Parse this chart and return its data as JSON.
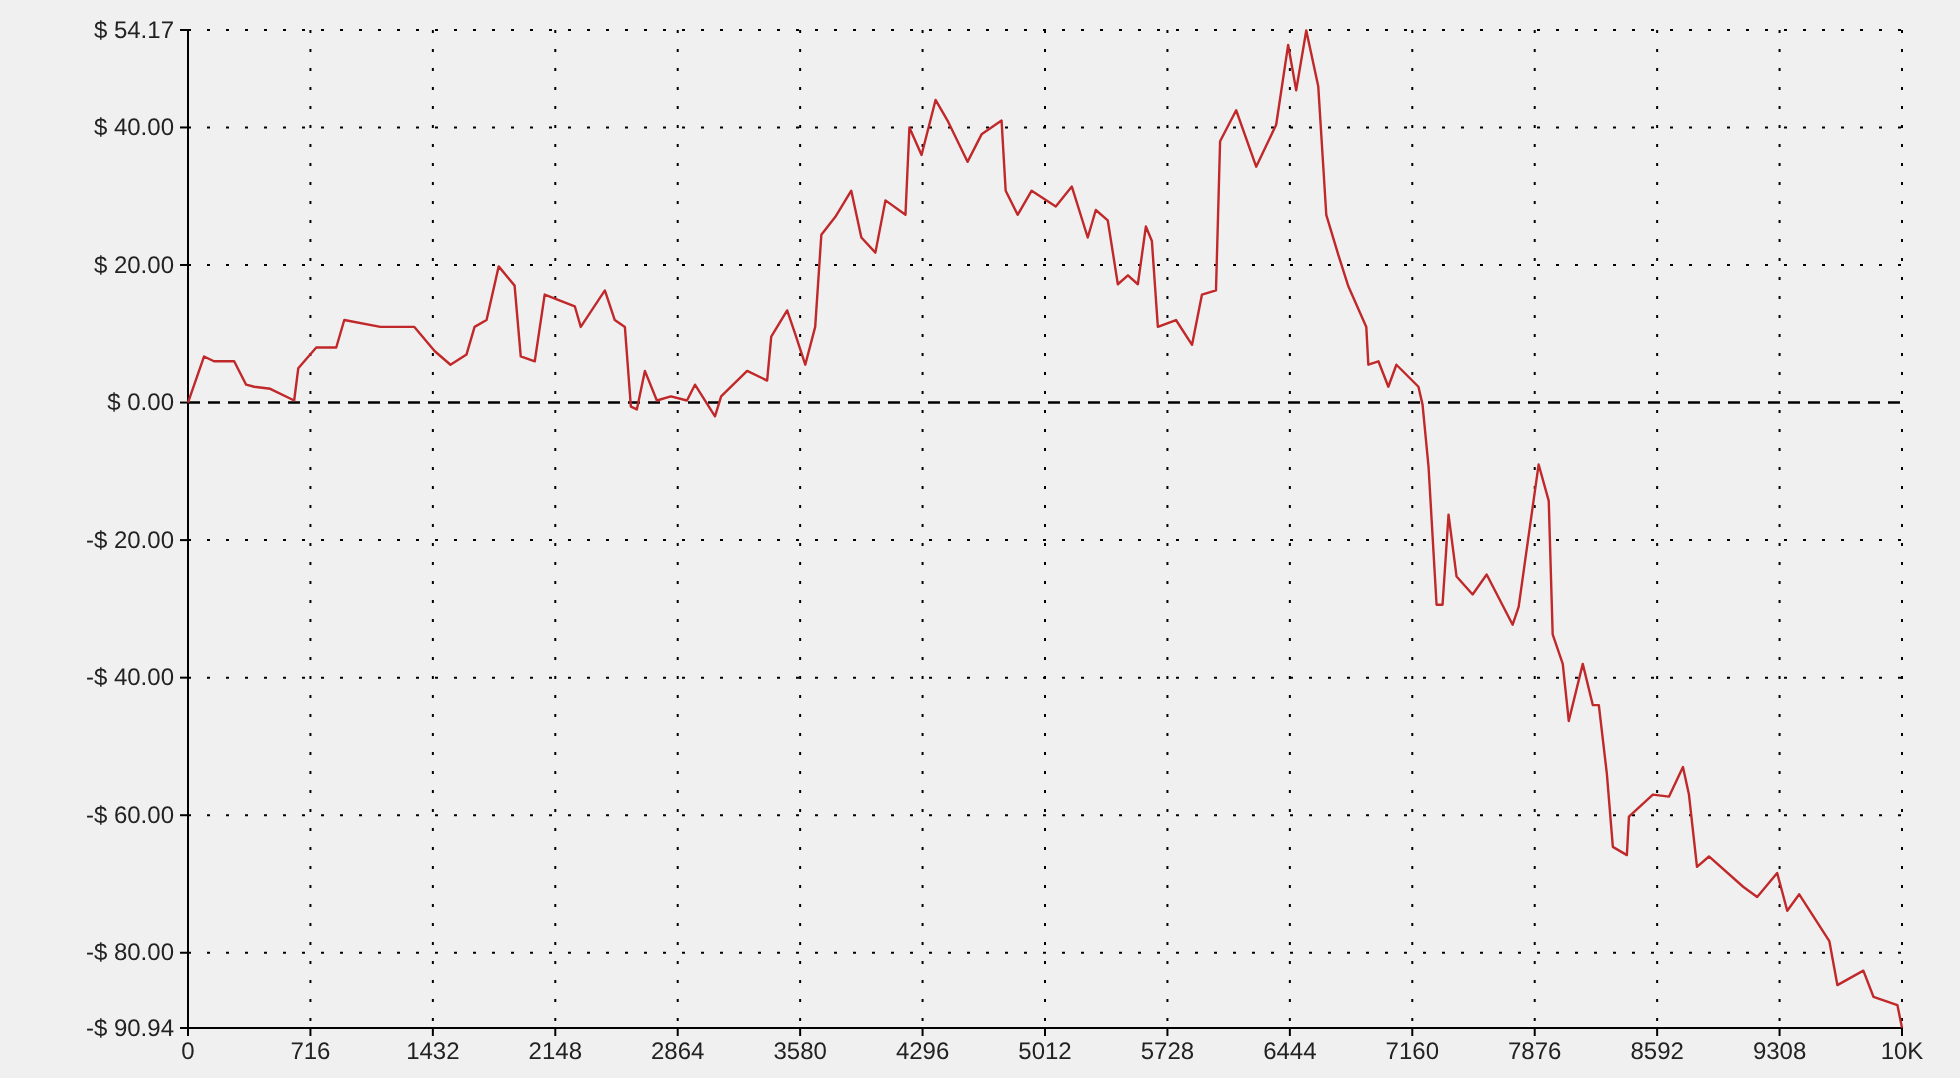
{
  "chart_data": {
    "type": "line",
    "x": [
      0,
      94,
      152,
      270,
      340,
      387,
      481,
      621,
      645,
      750,
      867,
      914,
      1125,
      1324,
      1442,
      1535,
      1629,
      1676,
      1746,
      1817,
      1910,
      1946,
      2028,
      2086,
      2262,
      2297,
      2438,
      2496,
      2555,
      2590,
      2625,
      2672,
      2742,
      2824,
      2918,
      2965,
      3082,
      3118,
      3270,
      3387,
      3411,
      3504,
      3551,
      3610,
      3668,
      3704,
      3786,
      3879,
      3938,
      4020,
      4079,
      4196,
      4219,
      4290,
      4372,
      4442,
      4559,
      4641,
      4758,
      4782,
      4852,
      4934,
      5075,
      5169,
      5262,
      5309,
      5379,
      5438,
      5497,
      5555,
      5602,
      5637,
      5672,
      5778,
      5872,
      5930,
      6012,
      6036,
      6130,
      6247,
      6364,
      6434,
      6481,
      6540,
      6610,
      6657,
      6727,
      6786,
      6891,
      6903,
      6962,
      7020,
      7067,
      7196,
      7220,
      7255,
      7302,
      7337,
      7372,
      7419,
      7513,
      7595,
      7747,
      7782,
      7899,
      7958,
      7981,
      8040,
      8075,
      8157,
      8216,
      8251,
      8298,
      8333,
      8415,
      8427,
      8567,
      8661,
      8743,
      8778,
      8825,
      8895,
      9095,
      9177,
      9294,
      9353,
      9423,
      9599,
      9646,
      9798,
      9857,
      9997,
      10024
    ],
    "series": [
      {
        "color": "#c0282a",
        "values": [
          0,
          6.7,
          6,
          6,
          2.6,
          2.3,
          2,
          0.3,
          5,
          8,
          8,
          12,
          11,
          11,
          7.5,
          5.5,
          7,
          11,
          12,
          19.8,
          17,
          6.7,
          6,
          15.7,
          14,
          11,
          16.3,
          12,
          11,
          -0.6,
          -1,
          4.6,
          0.3,
          0.9,
          0.3,
          2.6,
          -2,
          0.9,
          4.6,
          3.2,
          9.6,
          13.4,
          10,
          5.5,
          11,
          24.4,
          27,
          30.8,
          24,
          21.8,
          29.4,
          27.3,
          40,
          36,
          44,
          41,
          35,
          39,
          41,
          30.8,
          27.3,
          30.8,
          28.5,
          31.4,
          24,
          28,
          26.5,
          17.2,
          18.5,
          17.2,
          25.6,
          23.5,
          11,
          12,
          8.4,
          15.7,
          16.3,
          38,
          42.5,
          34.3,
          40.4,
          52,
          45.4,
          54.1,
          46,
          27.3,
          21.5,
          16.9,
          11,
          5.5,
          6,
          2.3,
          5.5,
          2.3,
          -0.3,
          -9.3,
          -29.4,
          -29.4,
          -16.3,
          -25.3,
          -27.9,
          -25,
          -32.3,
          -29.7,
          -9,
          -14.3,
          -33.7,
          -38,
          -46.3,
          -38,
          -44,
          -44,
          -54,
          -64.6,
          -65.8,
          -60.2,
          -57,
          -57.3,
          -53,
          -57,
          -67.5,
          -66,
          -70.4,
          -71.9,
          -68.4,
          -73.9,
          -71.5,
          -78.3,
          -84.7,
          -82.6,
          -86.4,
          -87.6,
          -90.9
        ]
      }
    ],
    "xlim": [
      0,
      10024
    ],
    "xticks": [
      0,
      716,
      1432,
      2148,
      2864,
      3580,
      4296,
      5012,
      5728,
      6444,
      7160,
      7876,
      8592,
      9308,
      {
        "value": 10024,
        "label": "10K"
      }
    ],
    "ylim": [
      -90.94,
      54.17
    ],
    "yticks": [
      {
        "value": 54.17,
        "label": "$ 54.17"
      },
      {
        "value": 40,
        "label": "$ 40.00"
      },
      {
        "value": 20,
        "label": "$ 20.00"
      },
      {
        "value": 0,
        "label": "$ 0.00"
      },
      {
        "value": -20,
        "label": "-$ 20.00"
      },
      {
        "value": -40,
        "label": "-$ 40.00"
      },
      {
        "value": -60,
        "label": "-$ 60.00"
      },
      {
        "value": -80,
        "label": "-$ 80.00"
      },
      {
        "value": -90.94,
        "label": "-$ 90.94"
      }
    ],
    "grid": true,
    "ref_lines": [
      {
        "axis": "y",
        "value": 0,
        "color": "#000000",
        "line_style": "dashed"
      }
    ],
    "marker": "none",
    "line_style": "solid"
  }
}
